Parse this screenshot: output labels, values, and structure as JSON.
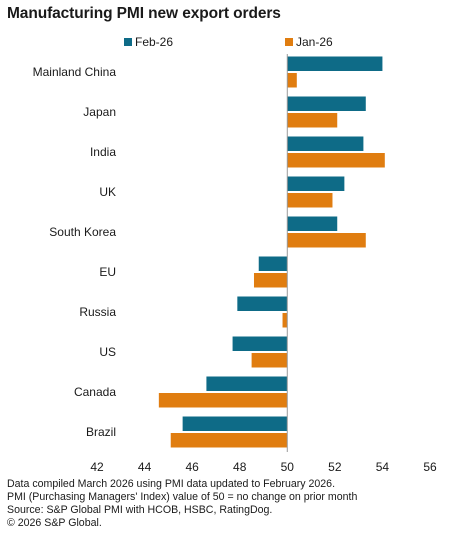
{
  "chart_data": {
    "type": "bar",
    "orientation": "horizontal",
    "title": "Manufacturing PMI new export orders",
    "categories": [
      "Mainland China",
      "Japan",
      "India",
      "UK",
      "South Korea",
      "EU",
      "Russia",
      "US",
      "Canada",
      "Brazil"
    ],
    "series": [
      {
        "name": "Feb-26",
        "color": "#0e6b87",
        "values": [
          54.0,
          53.3,
          53.2,
          52.4,
          52.1,
          48.8,
          47.9,
          47.7,
          46.6,
          45.6
        ]
      },
      {
        "name": "Jan-26",
        "color": "#e07d10",
        "values": [
          50.4,
          52.1,
          54.1,
          51.9,
          53.3,
          48.6,
          49.8,
          48.5,
          44.6,
          45.1
        ]
      }
    ],
    "baseline": 50,
    "xlim": [
      42,
      56
    ],
    "xticks": [
      42,
      44,
      46,
      48,
      50,
      52,
      54,
      56
    ],
    "grid": false,
    "legend": "top"
  },
  "notes": [
    "Data compiled March 2026 using PMI data updated to February 2026.",
    "PMI (Purchasing Managers' Index) value of 50 = no change on prior month",
    "Source: S&P Global PMI with HCOB, HSBC, RatingDog.",
    "© 2026 S&P Global."
  ]
}
